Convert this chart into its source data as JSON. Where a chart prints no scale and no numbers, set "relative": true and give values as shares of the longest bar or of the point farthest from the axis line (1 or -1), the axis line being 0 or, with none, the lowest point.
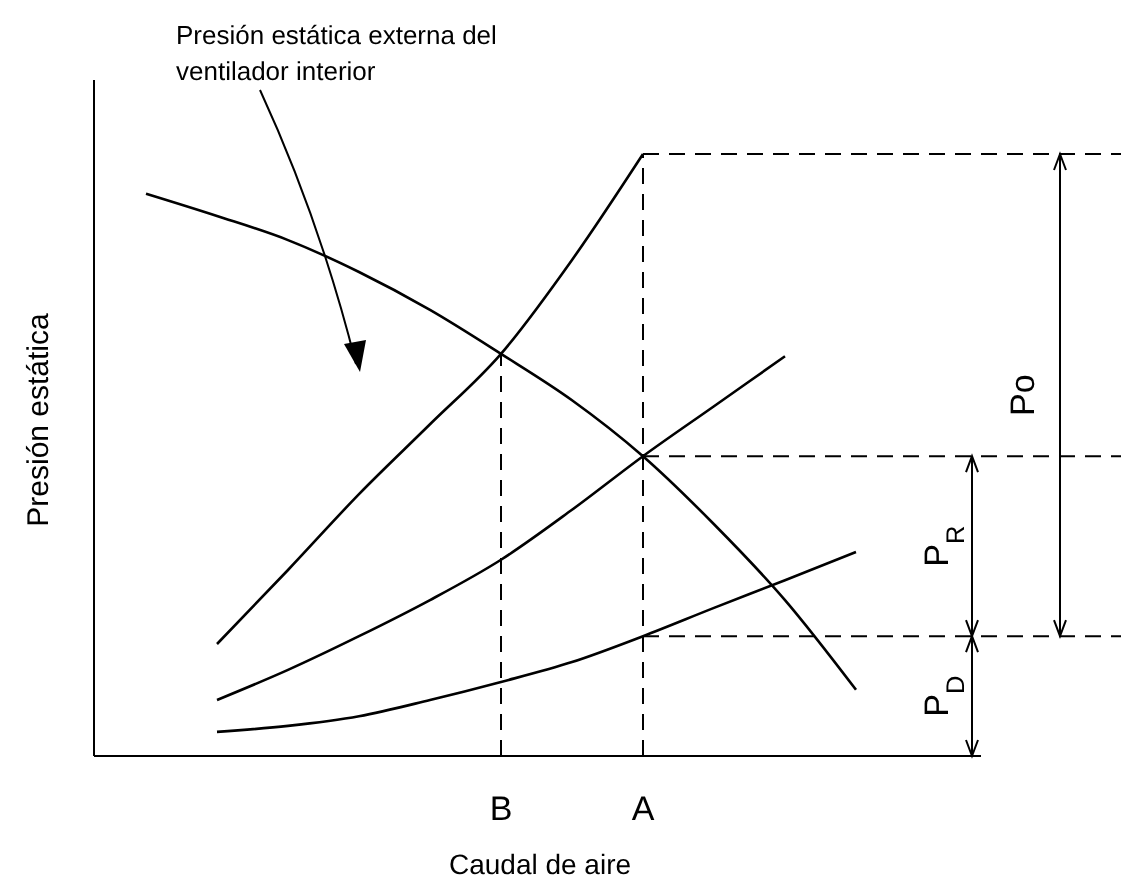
{
  "chart_data": {
    "type": "line",
    "relative": true,
    "xlabel": "Caudal de aire",
    "ylabel": "Presión estática",
    "categories": [
      null,
      null,
      null,
      null,
      null,
      "B",
      null,
      "A",
      null,
      null,
      null,
      null
    ],
    "color": "#000000",
    "series": [
      {
        "values": [
          0.934,
          0.897,
          0.857,
          0.804,
          0.741,
          0.668,
          0.591,
          0.498,
          0.385,
          0.259,
          0.11,
          null
        ]
      },
      {
        "values": [
          null,
          0.186,
          0.309,
          0.435,
          0.551,
          0.668,
          0.824,
          1,
          null,
          null,
          null,
          null
        ]
      },
      {
        "values": [
          null,
          0.093,
          0.143,
          0.199,
          0.259,
          0.326,
          0.409,
          0.498,
          0.581,
          0.664,
          null,
          null
        ]
      },
      {
        "values": [
          null,
          0.04,
          0.05,
          0.066,
          0.093,
          0.123,
          0.156,
          0.199,
          0.246,
          0.292,
          0.339,
          null
        ]
      }
    ],
    "ref_lines": [
      {
        "axis": "x",
        "value": "B",
        "line_style": "dashed"
      },
      {
        "axis": "x",
        "value": "A",
        "line_style": "dashed"
      },
      {
        "axis": "y",
        "value": 1,
        "line_style": "dashed"
      },
      {
        "axis": "y",
        "value": 0.498,
        "line_style": "dashed"
      },
      {
        "axis": "y",
        "value": 0.199,
        "line_style": "dashed"
      }
    ],
    "annotations": [
      "Presión estática externa del\nventilador interior",
      "Po",
      "P$_{R}$",
      "P$_{D}$"
    ],
    "line_style": "solid"
  }
}
